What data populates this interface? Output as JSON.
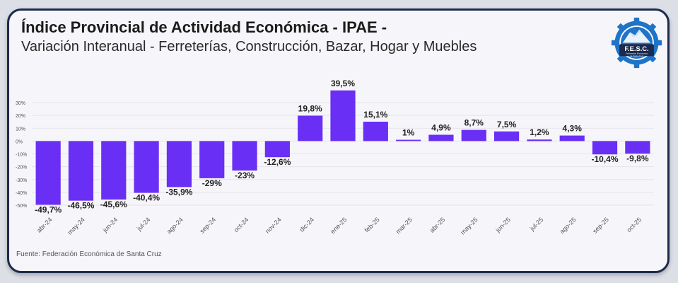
{
  "header": {
    "title": "Índice Provincial de Actividad Económica - IPAE -",
    "subtitle": "Variación Interanual - Ferreterías, Construcción, Bazar, Hogar y Muebles"
  },
  "footer": {
    "source": "Fuente: Federación Económica de Santa Cruz"
  },
  "logo": {
    "text": "F.E.S.C.",
    "caption_line1": "Federación Económica",
    "caption_line2": "de Santa Cruz"
  },
  "colors": {
    "bar": "#6a2ff5",
    "grid": "#e3e3ea",
    "axis_text": "#555555",
    "label_text": "#222222",
    "logo_blue": "#1f74c8",
    "logo_dark": "#1d2a4d"
  },
  "chart_data": {
    "type": "bar",
    "title": "Índice Provincial de Actividad Económica - IPAE -",
    "subtitle": "Variación Interanual - Ferreterías, Construcción, Bazar, Hogar y Muebles",
    "xlabel": "",
    "ylabel": "",
    "ylim": [
      -50,
      30
    ],
    "yticks": [
      -50,
      -40,
      -30,
      -20,
      -10,
      0,
      10,
      20,
      30
    ],
    "ytick_labels": [
      "-50%",
      "-40%",
      "-30%",
      "-20%",
      "-10%",
      "0%",
      "10%",
      "20%",
      "30%"
    ],
    "grid": true,
    "categories": [
      "abr-24",
      "may-24",
      "jun-24",
      "jul-24",
      "ago-24",
      "sep-24",
      "oct-24",
      "nov-24",
      "dic-24",
      "ene-25",
      "feb-25",
      "mar-25",
      "abr-25",
      "may-25",
      "jun-25",
      "jul-25",
      "ago-25",
      "sep-25",
      "oct-25"
    ],
    "values": [
      -49.7,
      -46.5,
      -45.6,
      -40.4,
      -35.9,
      -29,
      -23,
      -12.6,
      19.8,
      39.5,
      15.1,
      1,
      4.9,
      8.7,
      7.5,
      1.2,
      4.3,
      -10.4,
      -9.8
    ],
    "data_labels": [
      "-49,7%",
      "-46,5%",
      "-45,6%",
      "-40,4%",
      "-35,9%",
      "-29%",
      "-23%",
      "-12,6%",
      "19,8%",
      "39,5%",
      "15,1%",
      "1%",
      "4,9%",
      "8,7%",
      "7,5%",
      "1,2%",
      "4,3%",
      "-10,4%",
      "-9,8%"
    ]
  }
}
